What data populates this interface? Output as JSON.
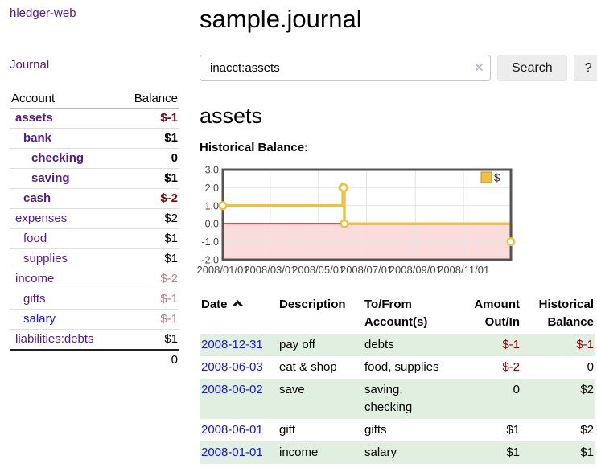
{
  "colors": {
    "link_purple": "#551a8b",
    "link_blue": "#1515dd",
    "negative_strong": "#8b0000",
    "negative_muted": "#bd7d7d",
    "table_stripe_green": "#e1efe0",
    "chart_line_gold": "#edc240",
    "chart_negative_pink": "#fbdcdc",
    "chart_zero_line_red": "#8b0000",
    "chart_border_gray": "#545454",
    "button_gray": "#ededed"
  },
  "icons": {
    "search_clear": "×",
    "date_sort": "chevron-up-icon",
    "legend_swatch": "gold-square"
  },
  "sidebar": {
    "brand": "hledger-web",
    "nav": [
      {
        "label": "Journal"
      }
    ],
    "accounts": {
      "headers": {
        "account": "Account",
        "balance": "Balance"
      },
      "rows": [
        {
          "name": "assets",
          "level": 0,
          "in_filter": true,
          "balance": "$-1",
          "negative": true
        },
        {
          "name": "bank",
          "level": 1,
          "in_filter": true,
          "balance": "$1",
          "negative": false
        },
        {
          "name": "checking",
          "level": 2,
          "in_filter": true,
          "balance": "0",
          "negative": false
        },
        {
          "name": "saving",
          "level": 2,
          "in_filter": true,
          "balance": "$1",
          "negative": false
        },
        {
          "name": "cash",
          "level": 1,
          "in_filter": true,
          "balance": "$-2",
          "negative": true
        },
        {
          "name": "expenses",
          "level": 0,
          "in_filter": false,
          "balance": "$2",
          "negative": false
        },
        {
          "name": "food",
          "level": 1,
          "in_filter": false,
          "balance": "$1",
          "negative": false
        },
        {
          "name": "supplies",
          "level": 1,
          "in_filter": false,
          "balance": "$1",
          "negative": false
        },
        {
          "name": "income",
          "level": 0,
          "in_filter": false,
          "balance": "$-2",
          "negative": true
        },
        {
          "name": "gifts",
          "level": 1,
          "in_filter": false,
          "balance": "$-1",
          "negative": true
        },
        {
          "name": "salary",
          "level": 1,
          "in_filter": false,
          "balance": "$-1",
          "negative": true,
          "link_state": "unvisited"
        },
        {
          "name": "liabilities:debts",
          "level": 0,
          "in_filter": false,
          "balance": "$1",
          "negative": false
        }
      ],
      "total": "0"
    }
  },
  "main": {
    "title": "sample.journal",
    "search": {
      "value": "inacct:assets",
      "clear_glyph": "×",
      "button_label": "Search",
      "help_label": "?"
    },
    "account_heading": "assets",
    "chart_title": "Historical Balance:",
    "register": {
      "columns": [
        {
          "lines": [
            "Date"
          ],
          "align": "left",
          "sort": "asc"
        },
        {
          "lines": [
            "Description"
          ],
          "align": "left"
        },
        {
          "lines": [
            "To/From",
            "Account(s)"
          ],
          "align": "left"
        },
        {
          "lines": [
            "Amount",
            "Out/In"
          ],
          "align": "right"
        },
        {
          "lines": [
            "Historical",
            "Balance"
          ],
          "align": "right"
        }
      ],
      "rows": [
        {
          "date": "2008-12-31",
          "description": "pay off",
          "accounts": "debts",
          "amount": "$-1",
          "amount_negative": true,
          "balance": "$-1",
          "balance_negative": true
        },
        {
          "date": "2008-06-03",
          "description": "eat & shop",
          "accounts": "food, supplies",
          "amount": "$-2",
          "amount_negative": true,
          "balance": "0",
          "balance_negative": false
        },
        {
          "date": "2008-06-02",
          "description": "save",
          "accounts": "saving, checking",
          "amount": "0",
          "amount_negative": false,
          "balance": "$2",
          "balance_negative": false
        },
        {
          "date": "2008-06-01",
          "description": "gift",
          "accounts": "gifts",
          "amount": "$1",
          "amount_negative": false,
          "balance": "$2",
          "balance_negative": false
        },
        {
          "date": "2008-01-01",
          "description": "income",
          "accounts": "salary",
          "amount": "$1",
          "amount_negative": false,
          "balance": "$1",
          "balance_negative": false
        }
      ]
    }
  },
  "chart_data": {
    "type": "line",
    "title": "Historical Balance:",
    "series": [
      {
        "name": "$",
        "color": "#edc240",
        "steps": true,
        "points": [
          [
            "2008-01-01",
            1
          ],
          [
            "2008-06-01",
            2
          ],
          [
            "2008-06-02",
            2
          ],
          [
            "2008-06-03",
            0
          ],
          [
            "2008-12-31",
            -1
          ]
        ]
      }
    ],
    "xrange": [
      "2008-01-01",
      "2008-12-31"
    ],
    "ylim": [
      -2,
      3
    ],
    "yticks": [
      "3.0",
      "2.0",
      "1.0",
      "0.0",
      "-1.0",
      "-2.0"
    ],
    "xtick_labels": [
      "2008/01/01",
      "2008/03/01",
      "2008/05/01",
      "2008/07/01",
      "2008/09/01",
      "2008/11/01"
    ],
    "grid": true,
    "legend_position": "top-right",
    "negative_area_color": "#fbdcdc",
    "zero_line_color": "#8b0000"
  }
}
